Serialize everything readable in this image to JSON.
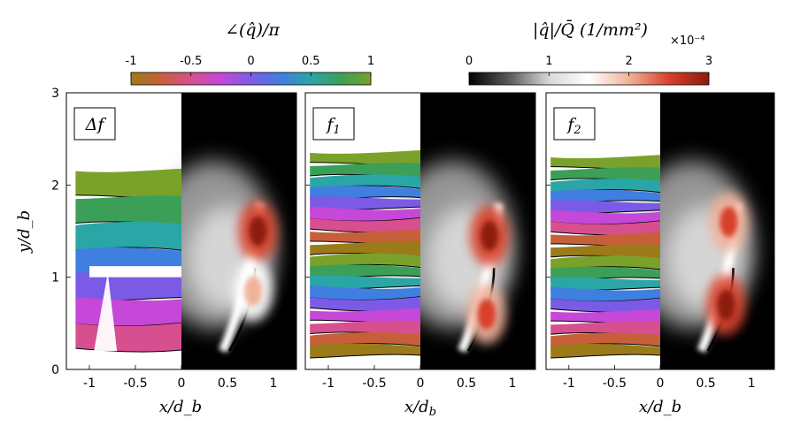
{
  "chart_data": [
    {
      "type": "heatmap",
      "panel_label": "Δf",
      "xlabel": "x/d_b",
      "ylabel": "y/d_b",
      "xlim": [
        -1.25,
        1.25
      ],
      "ylim": [
        0,
        3
      ],
      "xticks": [
        "-1",
        "-0.5",
        "0",
        "0.5",
        "1"
      ],
      "yticks": [
        "0",
        "1",
        "2",
        "3"
      ],
      "left_half": "phase ∠(q̂)/π",
      "right_half": "magnitude |q̂|/Q̄",
      "phase_region": {
        "x_range": [
          -1.15,
          0
        ],
        "y_range": [
          0.2,
          2.15
        ]
      },
      "magnitude_peaks": [
        {
          "x": 0.83,
          "y": 1.5,
          "level": 3.0
        },
        {
          "x": 0.78,
          "y": 0.85,
          "level": 2.2
        }
      ]
    },
    {
      "type": "heatmap",
      "panel_label": "f1",
      "xlabel": "",
      "ylabel": "",
      "xlim": [
        -1.25,
        1.25
      ],
      "ylim": [
        0,
        3
      ],
      "xticks": [
        "-1",
        "-0.5",
        "0",
        "0.5",
        "1"
      ],
      "phase_region": {
        "x_range": [
          -1.2,
          0
        ],
        "y_range": [
          0.15,
          2.35
        ]
      },
      "magnitude_peaks": [
        {
          "x": 0.75,
          "y": 1.45,
          "level": 3.0
        },
        {
          "x": 0.72,
          "y": 0.6,
          "level": 2.5
        }
      ]
    },
    {
      "type": "heatmap",
      "panel_label": "f2",
      "xlabel": "x/d_b",
      "ylabel": "",
      "xlim": [
        -1.25,
        1.25
      ],
      "ylim": [
        0,
        3
      ],
      "xticks": [
        "-1",
        "-0.5",
        "0",
        "0.5",
        "1"
      ],
      "phase_region": {
        "x_range": [
          -1.2,
          0
        ],
        "y_range": [
          0.15,
          2.3
        ]
      },
      "magnitude_peaks": [
        {
          "x": 0.75,
          "y": 1.6,
          "level": 2.5
        },
        {
          "x": 0.72,
          "y": 0.7,
          "level": 2.8
        }
      ]
    }
  ],
  "colorbars": {
    "phase": {
      "label": "∠(q̂)/π",
      "ticks": [
        "-1",
        "-0.5",
        "0",
        "0.5",
        "1"
      ],
      "range": [
        -1,
        1
      ],
      "colors": [
        "#9b7a19",
        "#c7603a",
        "#d74f8f",
        "#c548d8",
        "#7b5be6",
        "#3f7fe0",
        "#2aa6a6",
        "#3c9f57",
        "#7aa12a"
      ]
    },
    "magnitude": {
      "label": "|q̂|/Q̄ (1/mm²)",
      "ticks": [
        "0",
        "1",
        "2",
        "3"
      ],
      "range": [
        0,
        3
      ],
      "multiplier": "×10⁻⁴",
      "colors": [
        "#000000",
        "#5a5a5a",
        "#d8d8d8",
        "#ffffff",
        "#f1b29b",
        "#d8402c",
        "#8c1a0e"
      ]
    }
  }
}
